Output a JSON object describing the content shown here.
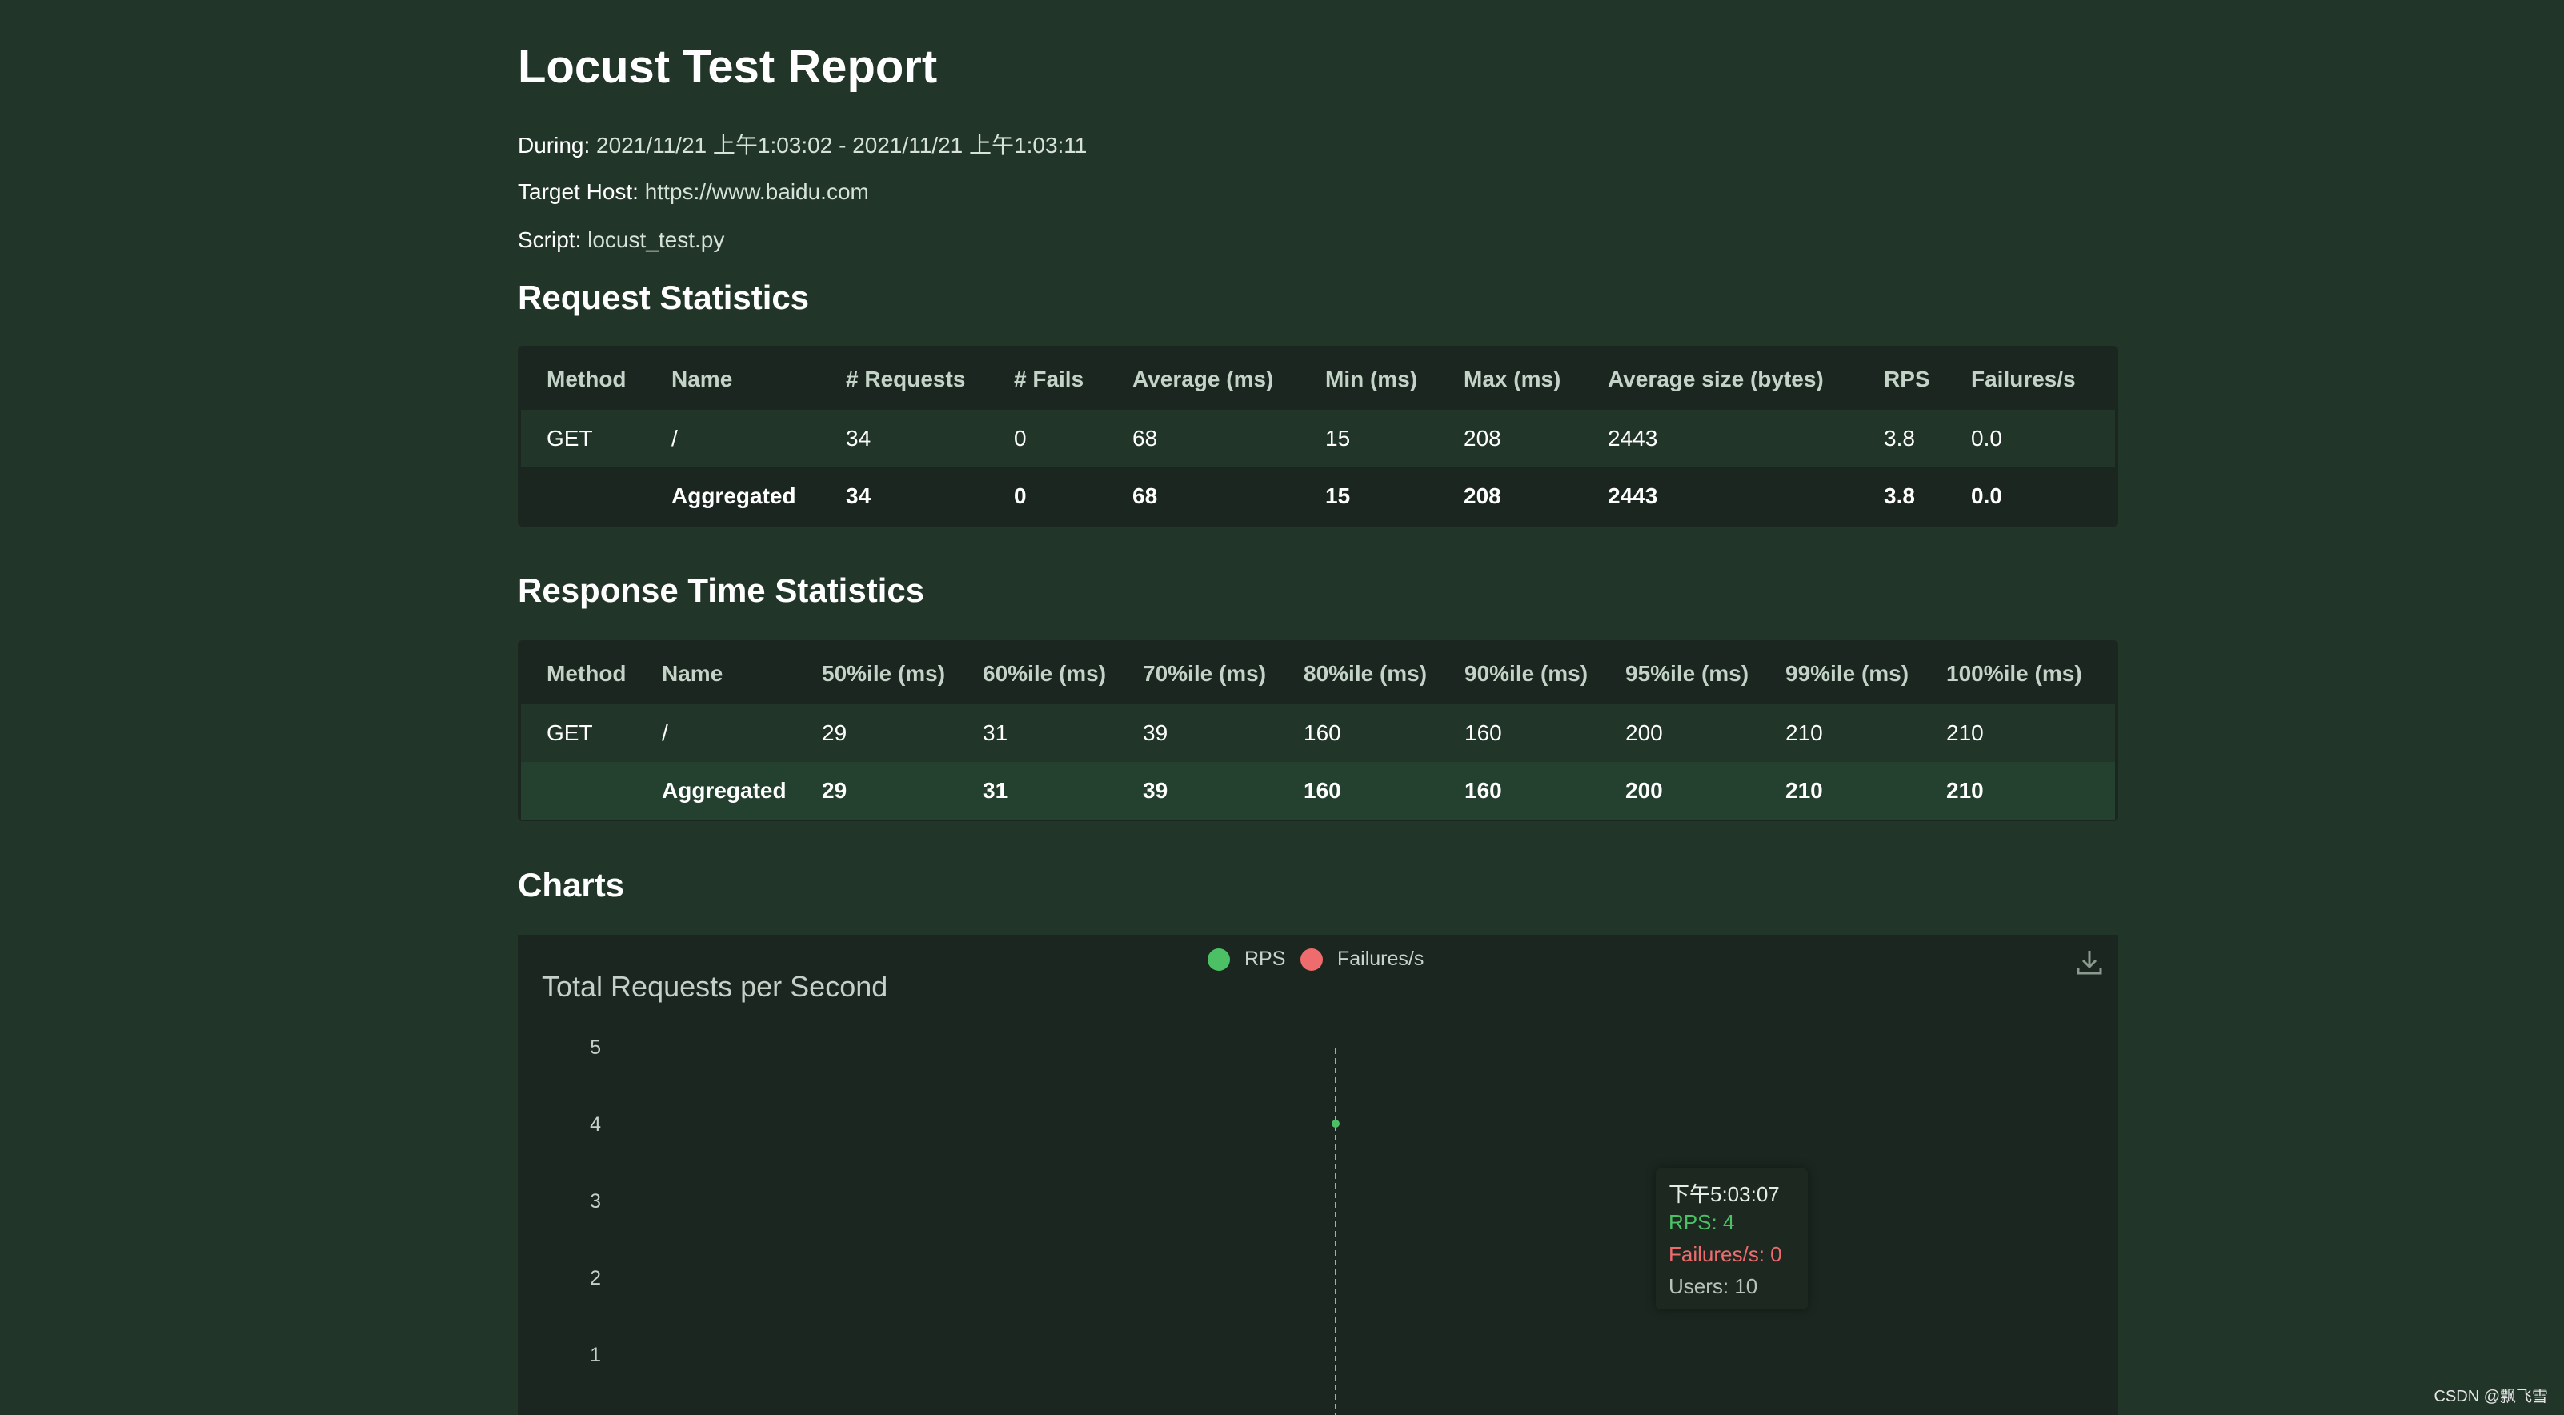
{
  "header": {
    "title": "Locust Test Report",
    "during_label": "During:",
    "during_value": "2021/11/21 上午1:03:02 - 2021/11/21 上午1:03:11",
    "host_label": "Target Host:",
    "host_value": "https://www.baidu.com",
    "script_label": "Script:",
    "script_value": "locust_test.py"
  },
  "request_stats": {
    "heading": "Request Statistics",
    "columns": [
      "Method",
      "Name",
      "# Requests",
      "# Fails",
      "Average (ms)",
      "Min (ms)",
      "Max (ms)",
      "Average size (bytes)",
      "RPS",
      "Failures/s"
    ],
    "rows": [
      [
        "GET",
        "/",
        "34",
        "0",
        "68",
        "15",
        "208",
        "2443",
        "3.8",
        "0.0"
      ],
      [
        "",
        "Aggregated",
        "34",
        "0",
        "68",
        "15",
        "208",
        "2443",
        "3.8",
        "0.0"
      ]
    ]
  },
  "response_stats": {
    "heading": "Response Time Statistics",
    "columns": [
      "Method",
      "Name",
      "50%ile (ms)",
      "60%ile (ms)",
      "70%ile (ms)",
      "80%ile (ms)",
      "90%ile (ms)",
      "95%ile (ms)",
      "99%ile (ms)",
      "100%ile (ms)"
    ],
    "rows": [
      [
        "GET",
        "/",
        "29",
        "31",
        "39",
        "160",
        "160",
        "200",
        "210",
        "210"
      ],
      [
        "",
        "Aggregated",
        "29",
        "31",
        "39",
        "160",
        "160",
        "200",
        "210",
        "210"
      ]
    ]
  },
  "charts": {
    "heading": "Charts",
    "download_icon": "download-icon",
    "colors": {
      "rps": "#4cc065",
      "failures": "#ee6b6e",
      "grid": "#9fb0a5"
    },
    "tooltip": {
      "time": "下午5:03:07",
      "rps": "RPS: 4",
      "failures": "Failures/s: 0",
      "users": "Users: 10"
    }
  },
  "chart_data": {
    "type": "line",
    "title": "Total Requests per Second",
    "series": [
      {
        "name": "RPS",
        "values": [
          4
        ]
      },
      {
        "name": "Failures/s",
        "values": [
          0
        ]
      }
    ],
    "x": [
      "下午5:03:07"
    ],
    "yticks": [
      "1",
      "2",
      "3",
      "4",
      "5"
    ],
    "ylim": [
      0,
      5
    ],
    "legend": "top-center",
    "grid": false
  },
  "watermark": "CSDN @飘飞雪"
}
